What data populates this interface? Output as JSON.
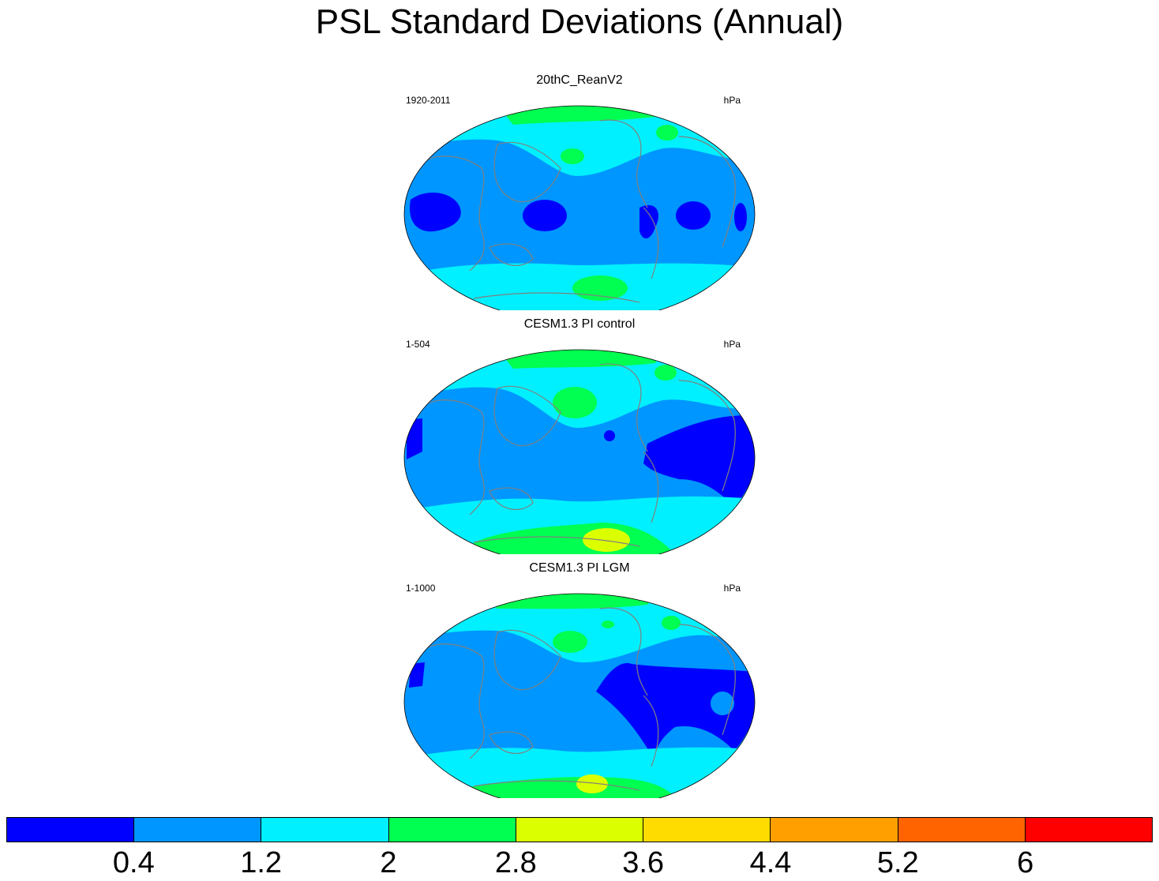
{
  "title": "PSL Standard Deviations (Annual)",
  "panels": [
    {
      "title": "20thC_ReanV2",
      "period": "1920-2011",
      "units": "hPa"
    },
    {
      "title": "CESM1.3 PI control",
      "period": "1-504",
      "units": "hPa"
    },
    {
      "title": "CESM1.3 PI LGM",
      "period": "1-1000",
      "units": "hPa"
    }
  ],
  "colorbar": {
    "colors": [
      "#0000ff",
      "#0096ff",
      "#00f0ff",
      "#00ff50",
      "#dcff00",
      "#ffdc00",
      "#ffa000",
      "#ff6400",
      "#ff0000"
    ],
    "tick_labels": [
      "0.4",
      "1.2",
      "2",
      "2.8",
      "3.6",
      "4.4",
      "5.2",
      "6"
    ]
  },
  "colors": {
    "ocean_base": "#0096ff",
    "low": "#0000ff",
    "mid": "#00f0ff",
    "high": "#00ff50",
    "peak": "#dcff00",
    "coast": "#808080"
  }
}
